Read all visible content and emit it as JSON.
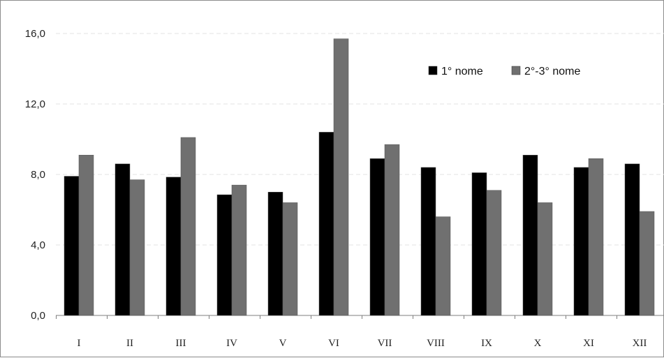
{
  "chart_data": {
    "type": "bar",
    "categories": [
      "I",
      "II",
      "III",
      "IV",
      "V",
      "VI",
      "VII",
      "VIII",
      "IX",
      "X",
      "XI",
      "XII"
    ],
    "series": [
      {
        "name": "1° nome",
        "color": "#000000",
        "values": [
          7.9,
          8.6,
          7.85,
          6.85,
          7.0,
          10.4,
          8.9,
          8.4,
          8.1,
          9.1,
          8.4,
          8.6
        ]
      },
      {
        "name": "2°-3° nome",
        "color": "#707070",
        "values": [
          9.1,
          7.7,
          10.1,
          7.4,
          6.4,
          15.7,
          9.7,
          5.6,
          7.1,
          6.4,
          8.9,
          5.9
        ]
      }
    ],
    "yticks": [
      "0,0",
      "4,0",
      "8,0",
      "12,0",
      "16,0"
    ],
    "ylim": [
      0,
      16
    ],
    "grid": true,
    "legend_position": "top-right",
    "title": "",
    "xlabel": "",
    "ylabel": ""
  }
}
